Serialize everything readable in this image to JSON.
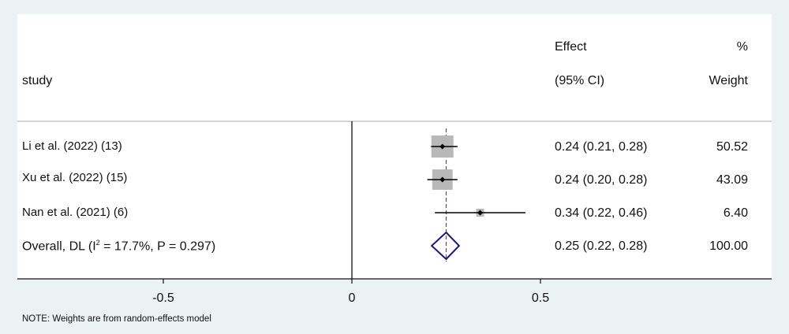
{
  "chart_data": {
    "type": "forest",
    "columns": {
      "study": "study",
      "effect_line1": "Effect",
      "effect_line2": "(95% CI)",
      "weight_line1": "%",
      "weight_line2": "Weight"
    },
    "studies": [
      {
        "label": "Li et al. (2022) (13)",
        "effect": 0.24,
        "lower": 0.21,
        "upper": 0.28,
        "effect_text": "0.24 (0.21, 0.28)",
        "weight": 50.52,
        "weight_text": "50.52"
      },
      {
        "label": "Xu et al. (2022) (15)",
        "effect": 0.24,
        "lower": 0.2,
        "upper": 0.28,
        "effect_text": "0.24 (0.20, 0.28)",
        "weight": 43.09,
        "weight_text": "43.09"
      },
      {
        "label": "Nan et al. (2021) (6)",
        "effect": 0.34,
        "lower": 0.22,
        "upper": 0.46,
        "effect_text": "0.34 (0.22, 0.46)",
        "weight": 6.4,
        "weight_text": "6.40"
      }
    ],
    "overall": {
      "label_prefix": "Overall, DL (I",
      "label_sup": "2",
      "label_suffix": " = 17.7%, P = 0.297)",
      "effect": 0.25,
      "lower": 0.22,
      "upper": 0.28,
      "effect_text": "0.25 (0.22, 0.28)",
      "weight_text": "100.00"
    },
    "x_ticks": [
      {
        "value": -0.5,
        "label": "-0.5"
      },
      {
        "value": 0,
        "label": "0"
      },
      {
        "value": 0.5,
        "label": "0.5"
      }
    ],
    "null_line": 0,
    "xlim": [
      -0.9,
      0.9
    ],
    "colors": {
      "box": "#b8b8b8",
      "ci": "#000000",
      "diamond": "#1a1a7a",
      "overall_line": "#b03030",
      "frame_bg": "#eaf2f3"
    },
    "note": "NOTE: Weights are from random-effects model"
  }
}
